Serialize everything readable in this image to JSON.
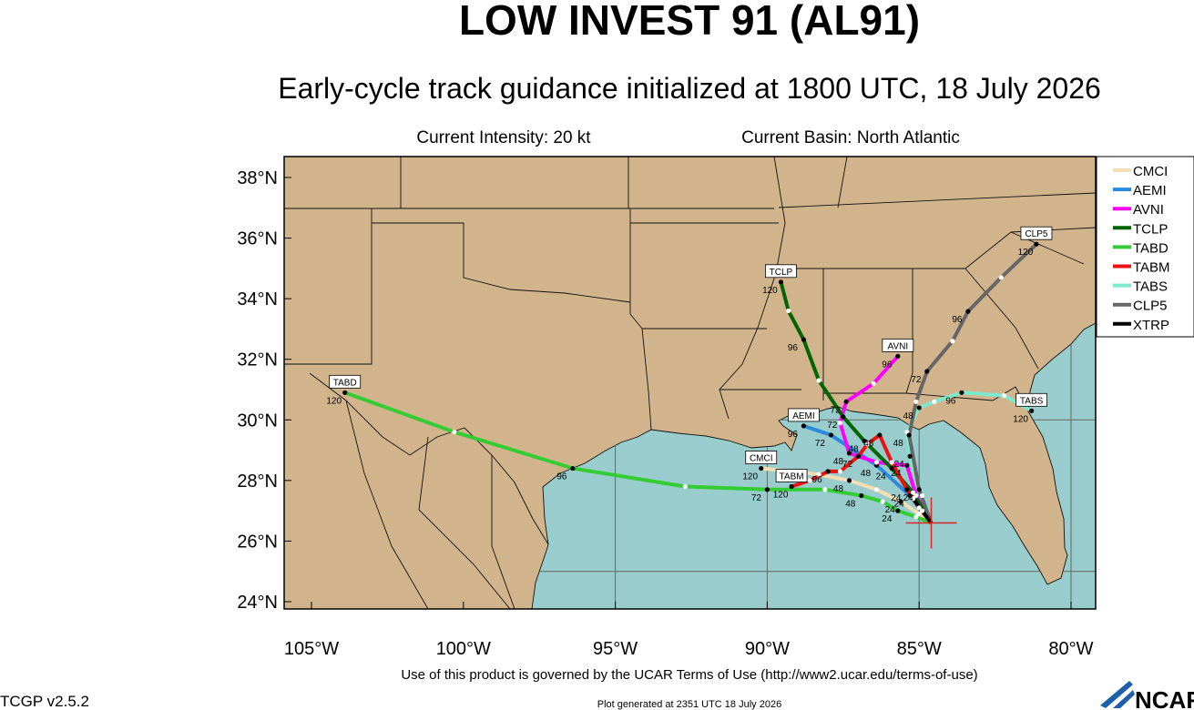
{
  "header": {
    "title": "LOW INVEST 91 (AL91)",
    "subtitle": "Early-cycle track guidance initialized at 1800 UTC, 18 July 2026",
    "intensity": "Current Intensity: 20 kt",
    "basin": "Current Basin: North Atlantic"
  },
  "map": {
    "lonlim": [
      -105.9,
      -79.19
    ],
    "latlim": [
      23.76,
      38.69
    ],
    "xticks": [
      {
        "value": -105,
        "label": "105°W"
      },
      {
        "value": -100,
        "label": "100°W"
      },
      {
        "value": -95,
        "label": "95°W"
      },
      {
        "value": -90,
        "label": "90°W"
      },
      {
        "value": -85,
        "label": "85°W"
      },
      {
        "value": -80,
        "label": "80°W"
      }
    ],
    "yticks": [
      {
        "value": 38,
        "label": "38°N"
      },
      {
        "value": 36,
        "label": "36°N"
      },
      {
        "value": 34,
        "label": "34°N"
      },
      {
        "value": 32,
        "label": "32°N"
      },
      {
        "value": 30,
        "label": "30°N"
      },
      {
        "value": 28,
        "label": "28°N"
      },
      {
        "value": 26,
        "label": "26°N"
      },
      {
        "value": 24,
        "label": "24°N"
      }
    ],
    "lat_grid": [
      25,
      30,
      35
    ],
    "land_color": "#d2b48c",
    "water_color": "#99cccc",
    "current_position": {
      "lon": -84.6,
      "lat": 26.6,
      "color": "#dd2222"
    },
    "tracks": [
      {
        "name": "CMCI",
        "color": "#f5deb3",
        "lon": [
          -84.6,
          -85.0,
          -85.6,
          -86.4,
          -87.3,
          -88.3,
          -89.2,
          -90.2
        ],
        "lat": [
          26.6,
          26.9,
          27.3,
          27.7,
          28.0,
          28.2,
          28.3,
          28.4
        ],
        "labels": [
          null,
          null,
          24,
          null,
          48,
          null,
          null,
          120
        ]
      },
      {
        "name": "AEMI",
        "color": "#2a8ae0",
        "lon": [
          -84.6,
          -85.3,
          -86.4,
          -87.9,
          -88.8
        ],
        "lat": [
          26.6,
          27.5,
          28.5,
          29.5,
          29.8
        ],
        "labels": [
          null,
          24,
          48,
          72,
          96
        ]
      },
      {
        "name": "AVNI",
        "color": "#ff00ff",
        "lon": [
          -84.6,
          -85.1,
          -85.4,
          -86.4,
          -87.3,
          -87.6,
          -87.4,
          -86.5,
          -85.7
        ],
        "lat": [
          26.6,
          27.5,
          28.5,
          28.6,
          28.9,
          29.9,
          30.6,
          31.2,
          32.1
        ],
        "labels": [
          null,
          null,
          24,
          null,
          48,
          null,
          72,
          null,
          96
        ]
      },
      {
        "name": "TCLP",
        "color": "#006400",
        "lon": [
          -84.6,
          -85.2,
          -85.9,
          -86.8,
          -87.5,
          -88.3,
          -88.8,
          -89.3,
          -89.55
        ],
        "lat": [
          26.6,
          27.6,
          28.4,
          29.3,
          30.1,
          31.3,
          32.65,
          33.6,
          34.55
        ],
        "labels": [
          null,
          null,
          24,
          48,
          72,
          null,
          96,
          null,
          120
        ]
      },
      {
        "name": "TABD",
        "color": "#33cc33",
        "lon": [
          -84.6,
          -85.1,
          -85.7,
          -86.2,
          -86.9,
          -88.1,
          -90.0,
          -92.7,
          -96.4,
          -100.3,
          -103.9
        ],
        "lat": [
          26.6,
          26.8,
          27.0,
          27.3,
          27.5,
          27.7,
          27.7,
          27.8,
          28.4,
          29.6,
          30.9
        ],
        "labels": [
          null,
          null,
          24,
          null,
          48,
          null,
          72,
          null,
          96,
          null,
          120
        ]
      },
      {
        "name": "TABM",
        "color": "#ee1111",
        "lon": [
          -84.6,
          -85.0,
          -85.4,
          -85.9,
          -86.3,
          -86.7,
          -87.0,
          -87.6,
          -88.0,
          -88.6,
          -89.2
        ],
        "lat": [
          26.6,
          27.1,
          27.7,
          28.6,
          29.5,
          29.2,
          28.8,
          28.3,
          28.3,
          28.0,
          27.8
        ],
        "labels": [
          null,
          null,
          24,
          null,
          48,
          null,
          72,
          null,
          96,
          null,
          120
        ]
      },
      {
        "name": "TABS",
        "color": "#7de8cc",
        "lon": [
          -84.6,
          -84.9,
          -85.3,
          -85.4,
          -85.0,
          -84.5,
          -83.6,
          -82.2,
          -81.3
        ],
        "lat": [
          26.6,
          27.5,
          28.8,
          29.6,
          30.4,
          30.6,
          30.9,
          30.8,
          30.3
        ],
        "labels": [
          null,
          null,
          24,
          null,
          48,
          null,
          96,
          null,
          120
        ]
      },
      {
        "name": "CLP5",
        "color": "#666666",
        "lon": [
          -84.6,
          -85.0,
          -85.33,
          -85.1,
          -84.74,
          -83.9,
          -83.39,
          -82.3,
          -81.14
        ],
        "lat": [
          26.6,
          27.7,
          29.5,
          30.6,
          31.6,
          32.6,
          33.58,
          34.7,
          35.8
        ],
        "labels": [
          null,
          24,
          48,
          null,
          72,
          null,
          96,
          null,
          120
        ]
      },
      {
        "name": "XTRP",
        "color": "#000000",
        "lon": [
          -84.6,
          -84.9,
          -85.2
        ],
        "lat": [
          26.6,
          27.0,
          27.4
        ],
        "labels": [
          null,
          null,
          null
        ]
      }
    ]
  },
  "footer": {
    "terms": "Use of this product is governed by the UCAR Terms of Use (http://www2.ucar.edu/terms-of-use)",
    "version": "TCGP v2.5.2",
    "generated": "Plot generated at 2351 UTC   18 July 2026",
    "logo": "NCAR"
  }
}
